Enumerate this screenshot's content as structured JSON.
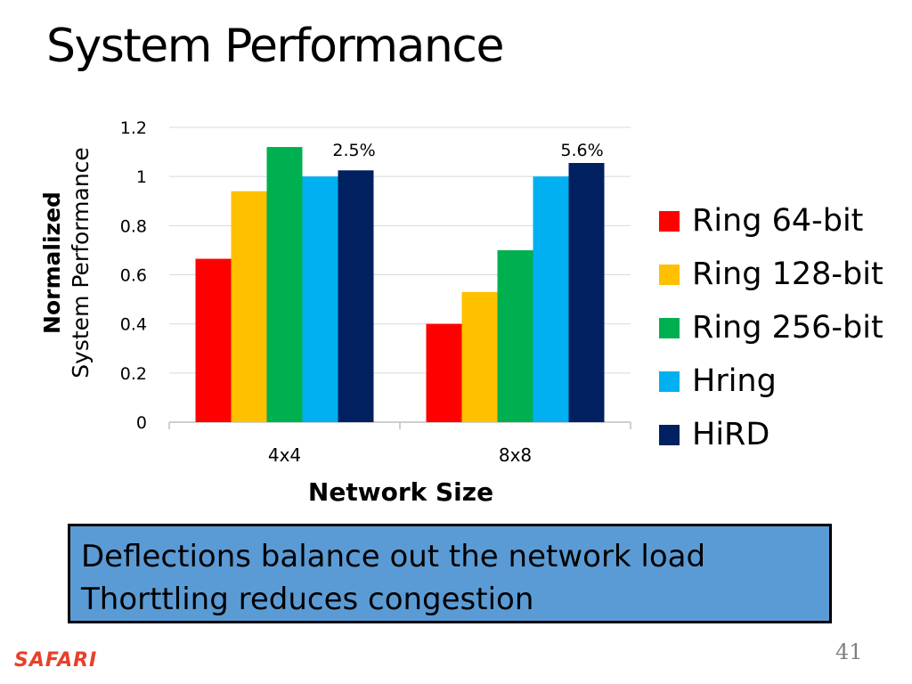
{
  "slide": {
    "title": "System Performance",
    "callout_lines": [
      "Deflections balance out the network load",
      "Thorttling reduces congestion"
    ],
    "logo_text": "SAFARI",
    "page_number": "41"
  },
  "chart_data": {
    "type": "bar",
    "title": "",
    "ylabel_line1": "Normalized",
    "ylabel_line2": "System  Performance",
    "xlabel": "Network Size",
    "categories": [
      "4x4",
      "8x8"
    ],
    "ylim": [
      0,
      1.2
    ],
    "yticks": [
      "0",
      "0.2",
      "0.4",
      "0.6",
      "0.8",
      "1",
      "1.2"
    ],
    "grid": true,
    "legend_position": "right",
    "series": [
      {
        "name": "Ring 64-bit",
        "color": "#ff0000",
        "values": [
          0.665,
          0.4
        ]
      },
      {
        "name": "Ring 128-bit",
        "color": "#ffc000",
        "values": [
          0.94,
          0.53
        ]
      },
      {
        "name": "Ring 256-bit",
        "color": "#00b050",
        "values": [
          1.12,
          0.7
        ]
      },
      {
        "name": "Hring",
        "color": "#00b0f0",
        "values": [
          1.0,
          1.0
        ]
      },
      {
        "name": "HiRD",
        "color": "#002060",
        "values": [
          1.025,
          1.055
        ]
      }
    ],
    "annotations": [
      {
        "text": "2.5%",
        "category": "4x4"
      },
      {
        "text": "5.6%",
        "category": "8x8"
      }
    ]
  }
}
